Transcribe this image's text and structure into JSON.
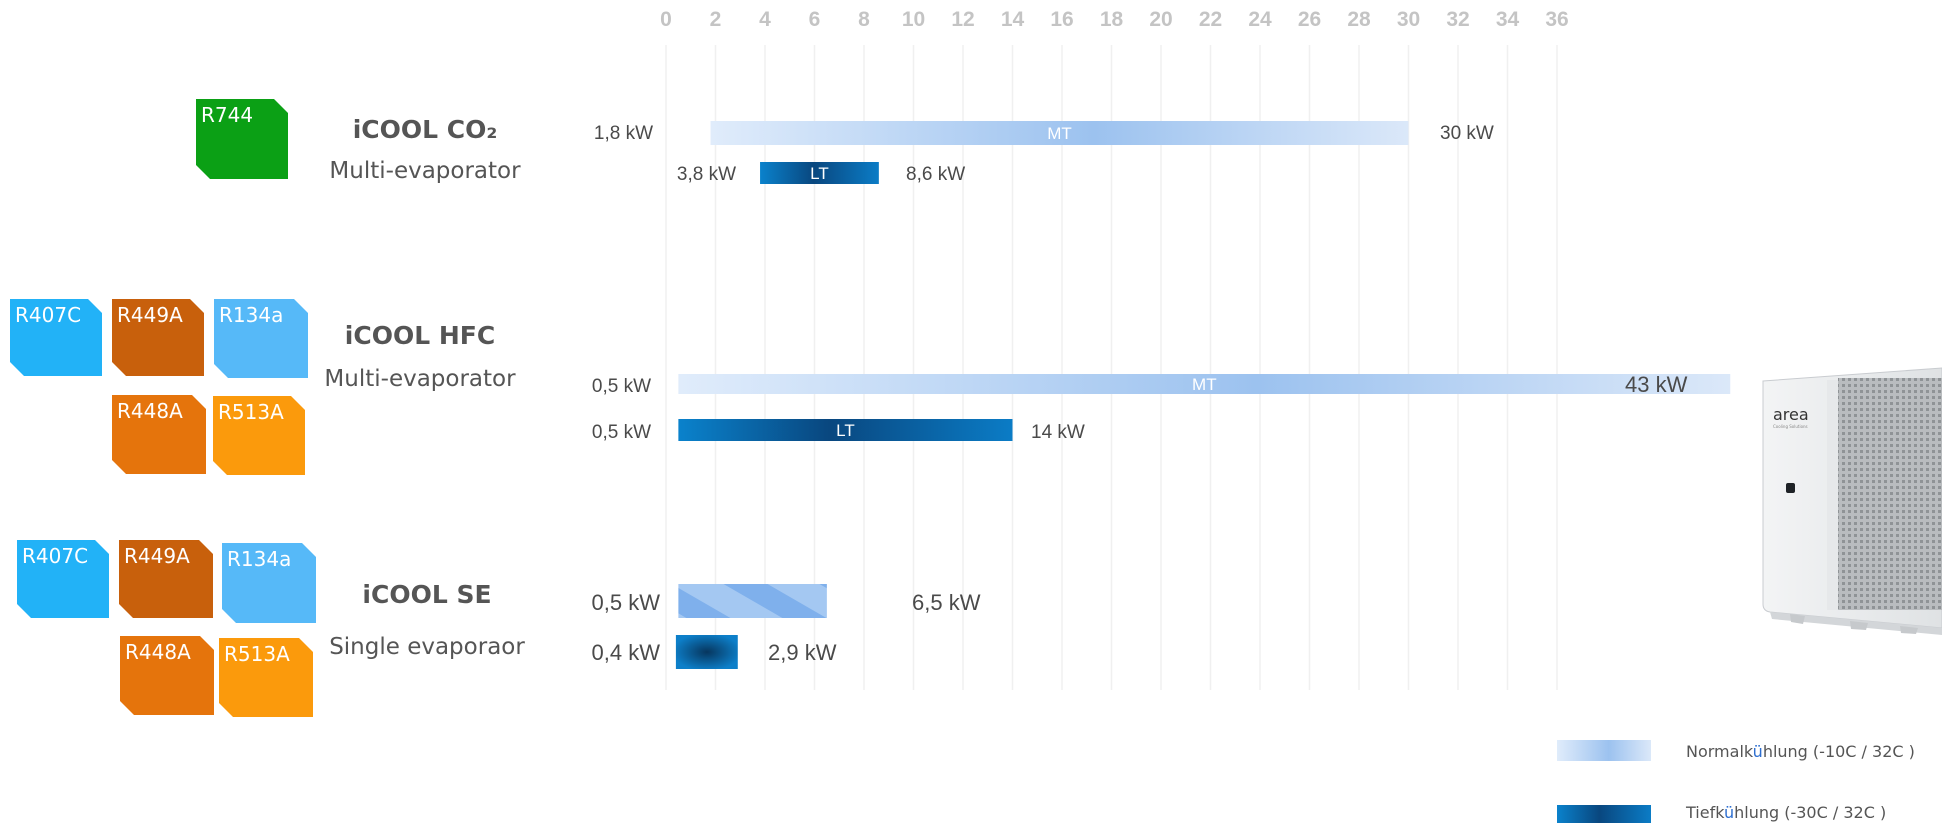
{
  "colors": {
    "r744": "#0ba015",
    "r407c": "#22b2f7",
    "r449a": "#c8600c",
    "r134a": "#56b9f8",
    "r448a": "#e5740c",
    "r513a": "#fb9a0c",
    "mt_bar": "#a9ccf4",
    "lt_bar": "#0a66b2"
  },
  "chart_data": {
    "type": "bar",
    "orientation": "horizontal-range",
    "x_ticks": [
      "0",
      "2",
      "4",
      "6",
      "8",
      "10",
      "12",
      "14",
      "16",
      "18",
      "20",
      "22",
      "24",
      "26",
      "28",
      "30",
      "32",
      "34",
      "36"
    ],
    "xlim": [
      0,
      36
    ],
    "grid": true,
    "legend_position": "bottom-right",
    "legend": [
      {
        "pre": "Normalk",
        "hl": "ü",
        "post": "hlung (-10C / 32C )",
        "style": "mt"
      },
      {
        "pre": "Tiefk",
        "hl": "ü",
        "post": "hlung (-30C / 32C )",
        "style": "lt"
      }
    ],
    "products": [
      {
        "name": "iCOOL CO₂",
        "subtitle": "Multi-evaporator",
        "refrigerants": [
          {
            "label": "R744",
            "color": "r744"
          }
        ],
        "ranges": [
          {
            "series": "MT",
            "label": "MT",
            "min": 1.8,
            "max": 30,
            "min_label": "1,8 kW",
            "max_label": "30 kW"
          },
          {
            "series": "LT",
            "label": "LT",
            "min": 3.8,
            "max": 8.6,
            "min_label": "3,8 kW",
            "max_label": "8,6 kW"
          }
        ]
      },
      {
        "name": "iCOOL HFC",
        "subtitle": "Multi-evaporator",
        "refrigerants": [
          {
            "label": "R407C",
            "color": "r407c"
          },
          {
            "label": "R449A",
            "color": "r449a"
          },
          {
            "label": "R134a",
            "color": "r134a"
          },
          {
            "label": "R448A",
            "color": "r448a"
          },
          {
            "label": "R513A",
            "color": "r513a"
          }
        ],
        "ranges": [
          {
            "series": "MT",
            "label": "MT",
            "min": 0.5,
            "max": 43,
            "min_label": "0,5 kW",
            "max_label": "43 kW"
          },
          {
            "series": "LT",
            "label": "LT",
            "min": 0.5,
            "max": 14,
            "min_label": "0,5 kW",
            "max_label": "14 kW"
          }
        ]
      },
      {
        "name": "iCOOL SE",
        "subtitle": "Single evaporaor",
        "refrigerants": [
          {
            "label": "R407C",
            "color": "r407c"
          },
          {
            "label": "R449A",
            "color": "r449a"
          },
          {
            "label": "R134a",
            "color": "r134a"
          },
          {
            "label": "R448A",
            "color": "r448a"
          },
          {
            "label": "R513A",
            "color": "r513a"
          }
        ],
        "ranges": [
          {
            "series": "MT",
            "label": "",
            "min": 0.5,
            "max": 6.5,
            "min_label": "0,5 kW",
            "max_label": "6,5 kW"
          },
          {
            "series": "LT",
            "label": "",
            "min": 0.4,
            "max": 2.9,
            "min_label": "0,4 kW",
            "max_label": "2,9 kW"
          }
        ]
      }
    ]
  },
  "product_image": {
    "brand": "area",
    "tagline": "Cooling Solutions"
  }
}
